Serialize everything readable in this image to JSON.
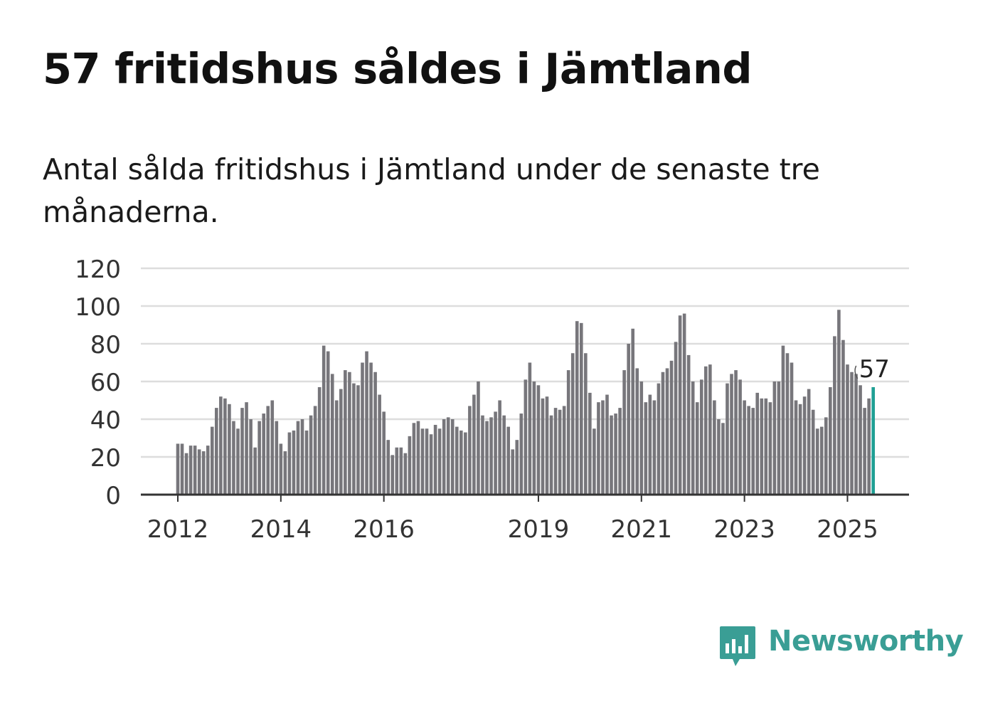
{
  "title": "57 fritidshus såldes i Jämtland",
  "subtitle": "Antal sålda fritidshus i Jämtland under de senaste tre månaderna.",
  "brand": {
    "name": "Newsworthy",
    "color": "#3a9e95",
    "icon": "newsworthy-logo-icon"
  },
  "colors": {
    "bar": "#77767b",
    "highlight": "#1f9f94",
    "grid": "#dddddd",
    "axis": "#333333"
  },
  "chart_data": {
    "type": "bar",
    "ylim": [
      0,
      120
    ],
    "yticks": [
      0,
      20,
      40,
      60,
      80,
      100,
      120
    ],
    "xtick_labels": [
      {
        "label": "2012",
        "index": 0
      },
      {
        "label": "2014",
        "index": 24
      },
      {
        "label": "2016",
        "index": 48
      },
      {
        "label": "2019",
        "index": 84
      },
      {
        "label": "2021",
        "index": 108
      },
      {
        "label": "2023",
        "index": 132
      },
      {
        "label": "2025",
        "index": 156
      }
    ],
    "grid": true,
    "annotation": {
      "text": "57",
      "index": 162
    },
    "highlight_index": 162,
    "values": [
      27,
      27,
      22,
      26,
      26,
      24,
      23,
      26,
      36,
      46,
      52,
      51,
      48,
      39,
      35,
      46,
      49,
      40,
      25,
      39,
      43,
      47,
      50,
      39,
      27,
      23,
      33,
      34,
      39,
      40,
      34,
      42,
      47,
      57,
      79,
      76,
      64,
      50,
      56,
      66,
      65,
      59,
      58,
      70,
      76,
      70,
      65,
      53,
      44,
      29,
      21,
      25,
      25,
      22,
      31,
      38,
      39,
      35,
      35,
      32,
      37,
      35,
      40,
      41,
      40,
      36,
      34,
      33,
      47,
      53,
      60,
      42,
      39,
      41,
      44,
      50,
      42,
      36,
      24,
      29,
      43,
      61,
      70,
      60,
      58,
      51,
      52,
      42,
      46,
      45,
      47,
      66,
      75,
      92,
      91,
      75,
      54,
      35,
      49,
      50,
      53,
      42,
      43,
      46,
      66,
      80,
      88,
      67,
      60,
      49,
      53,
      50,
      59,
      65,
      67,
      71,
      81,
      95,
      96,
      74,
      60,
      49,
      61,
      68,
      69,
      50,
      40,
      38,
      59,
      64,
      66,
      61,
      50,
      47,
      46,
      54,
      51,
      51,
      49,
      60,
      60,
      79,
      75,
      70,
      50,
      48,
      52,
      56,
      45,
      35,
      36,
      41,
      57,
      84,
      98,
      82,
      69,
      65,
      64,
      58,
      46,
      51,
      57
    ]
  }
}
